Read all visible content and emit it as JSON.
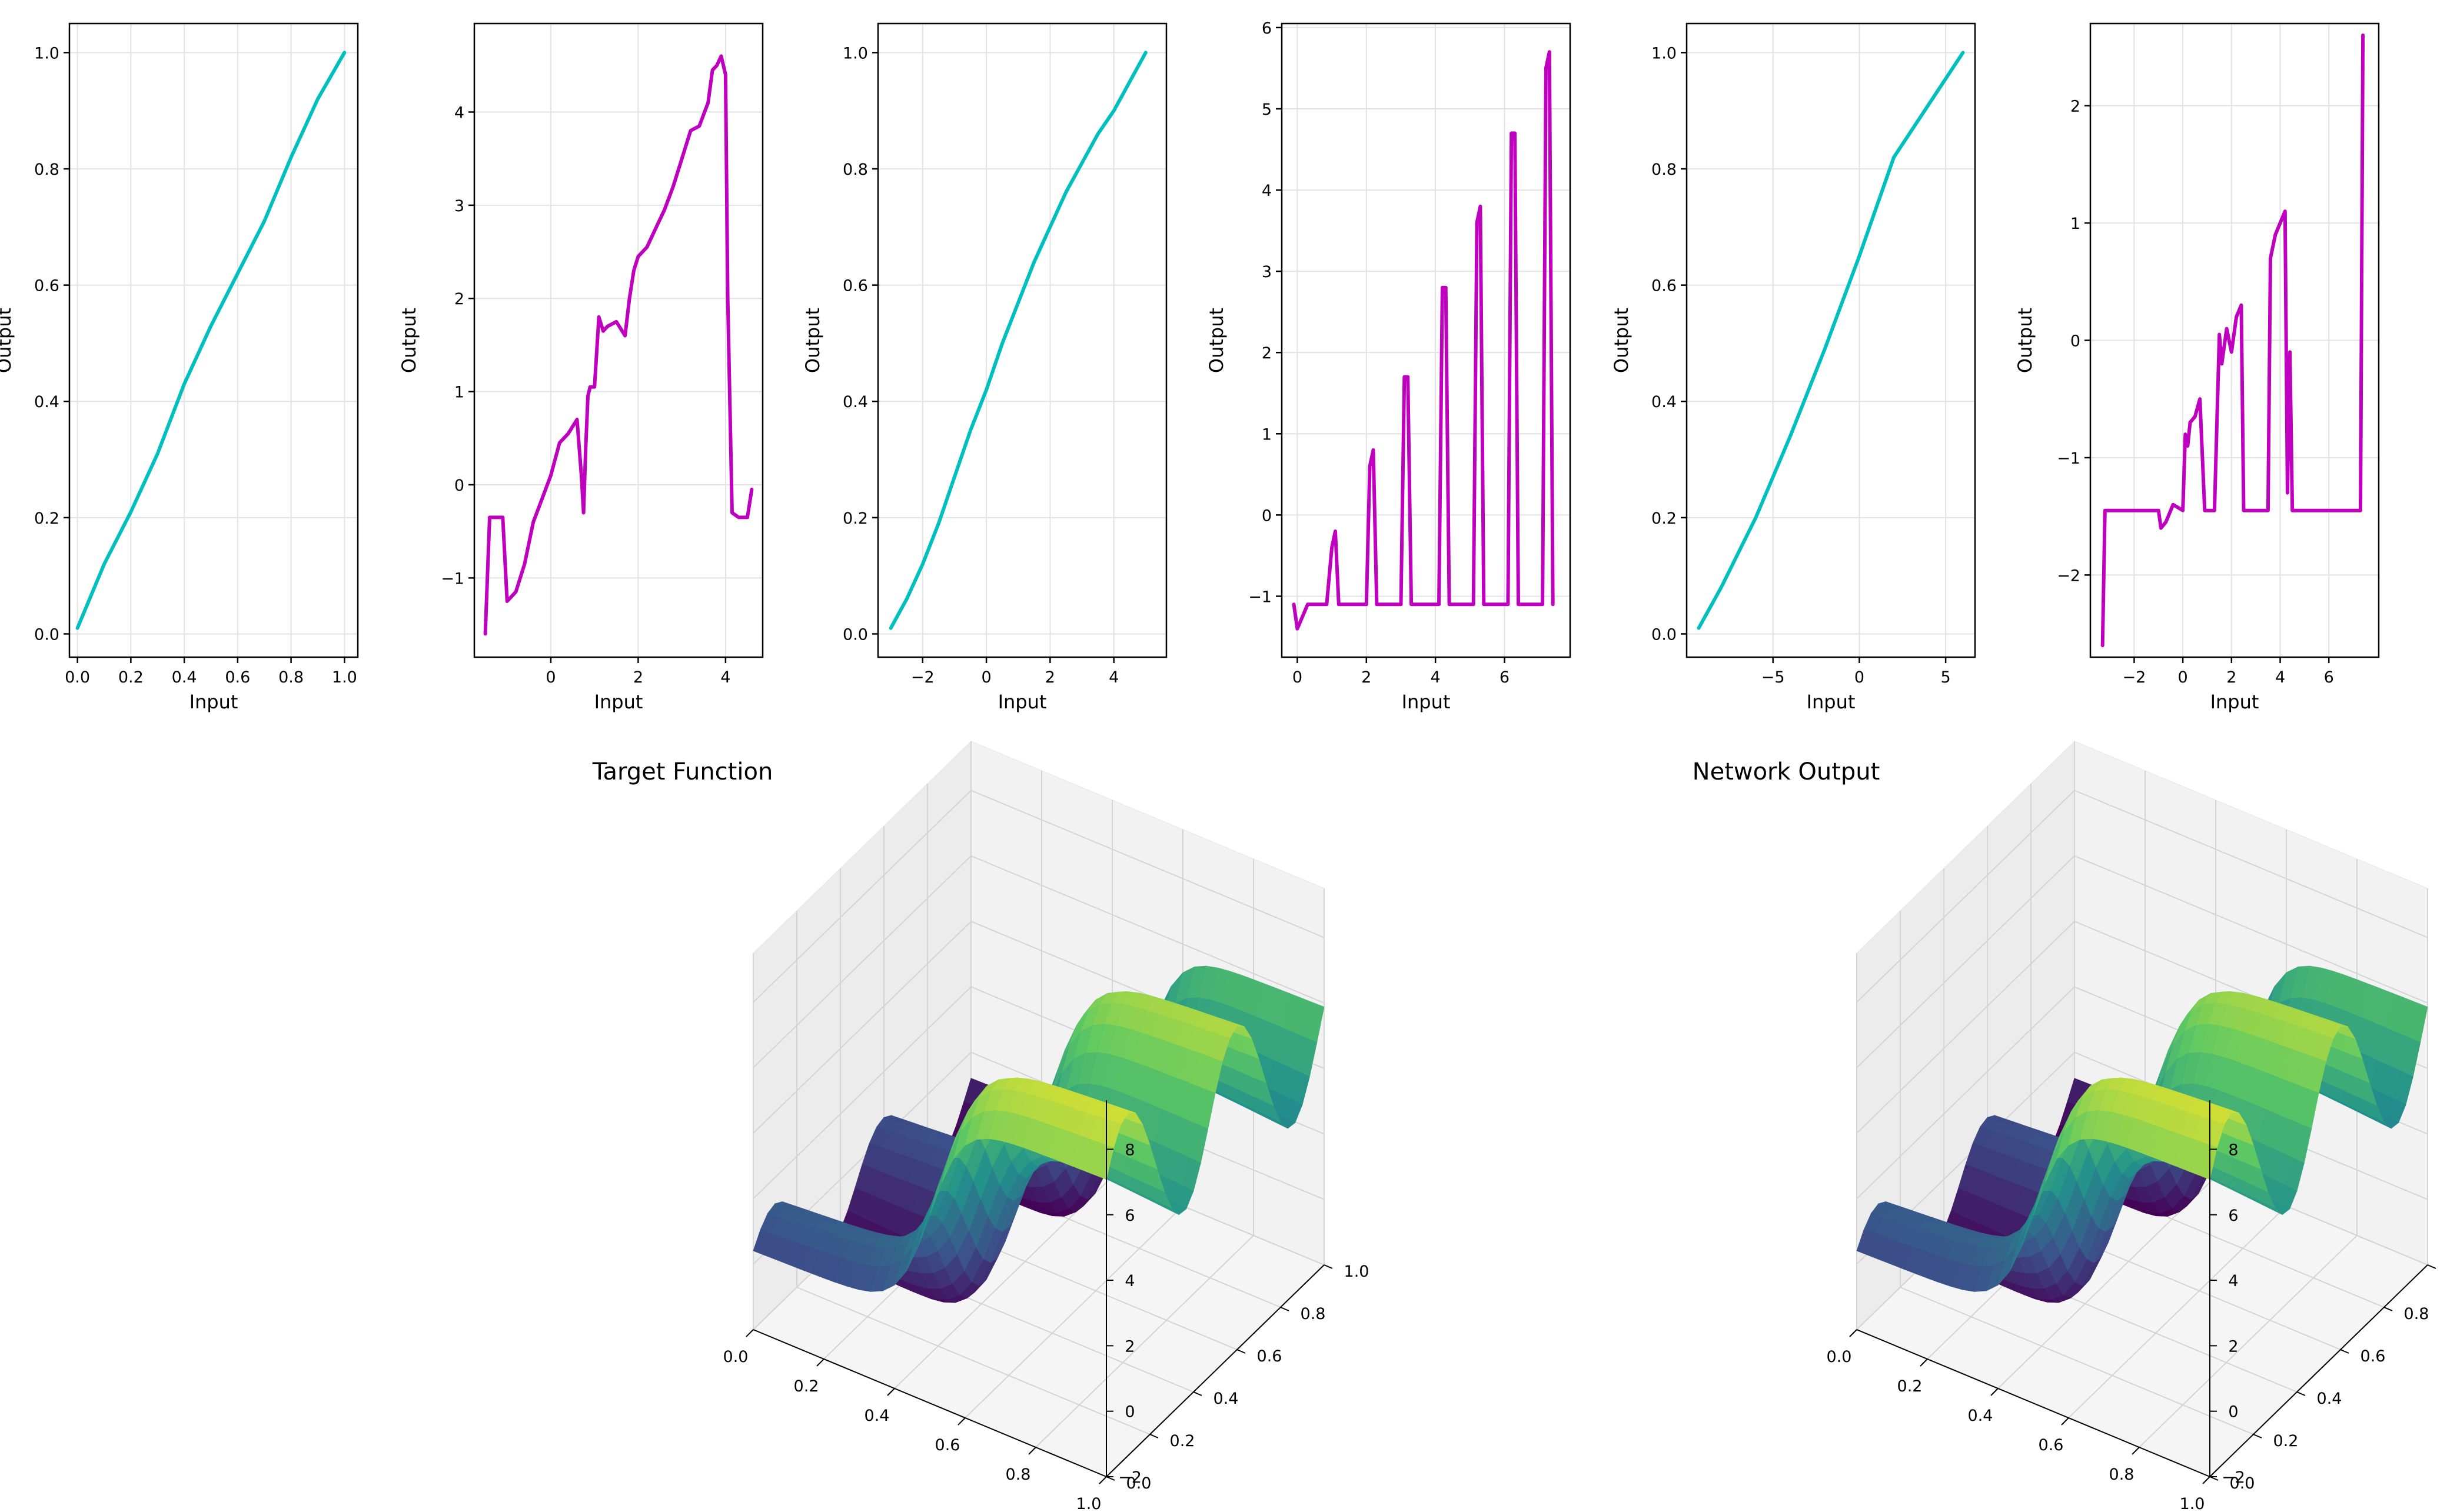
{
  "chart_data": [
    {
      "type": "line",
      "color": "#00bfbf",
      "xlabel": "Input",
      "ylabel": "Output",
      "xlim": [
        -0.03,
        1.05
      ],
      "ylim": [
        -0.04,
        1.05
      ],
      "xticks": [
        0.0,
        0.2,
        0.4,
        0.6,
        0.8,
        1.0
      ],
      "xtick_labels": [
        "0.0",
        "0.2",
        "0.4",
        "0.6",
        "0.8",
        "1.0"
      ],
      "yticks": [
        0.0,
        0.2,
        0.4,
        0.6,
        0.8,
        1.0
      ],
      "ytick_labels": [
        "0.0",
        "0.2",
        "0.4",
        "0.6",
        "0.8",
        "1.0"
      ],
      "grid": true,
      "x": [
        0.0,
        0.1,
        0.2,
        0.3,
        0.4,
        0.5,
        0.6,
        0.7,
        0.8,
        0.9,
        1.0
      ],
      "y": [
        0.01,
        0.12,
        0.21,
        0.31,
        0.43,
        0.53,
        0.62,
        0.71,
        0.82,
        0.92,
        1.0
      ]
    },
    {
      "type": "line",
      "color": "#bf00bf",
      "xlabel": "Input",
      "ylabel": "Output",
      "xlim": [
        -1.75,
        4.85
      ],
      "ylim": [
        -1.85,
        4.95
      ],
      "xticks": [
        0,
        2,
        4
      ],
      "xtick_labels": [
        "0",
        "2",
        "4"
      ],
      "yticks": [
        -1,
        0,
        1,
        2,
        3,
        4
      ],
      "ytick_labels": [
        "−1",
        "0",
        "1",
        "2",
        "3",
        "4"
      ],
      "grid": true,
      "x": [
        -1.5,
        -1.4,
        -1.1,
        -1.0,
        -0.8,
        -0.6,
        -0.4,
        -0.2,
        0.0,
        0.2,
        0.4,
        0.6,
        0.7,
        0.75,
        0.8,
        0.85,
        0.9,
        1.0,
        1.1,
        1.2,
        1.3,
        1.5,
        1.7,
        1.8,
        1.9,
        2.0,
        2.2,
        2.4,
        2.6,
        2.8,
        3.0,
        3.2,
        3.4,
        3.6,
        3.7,
        3.8,
        3.9,
        4.0,
        4.05,
        4.15,
        4.3,
        4.5,
        4.6
      ],
      "y": [
        -1.6,
        -0.35,
        -0.35,
        -1.25,
        -1.15,
        -0.85,
        -0.4,
        -0.15,
        0.1,
        0.45,
        0.55,
        0.7,
        0.1,
        -0.3,
        0.4,
        0.95,
        1.05,
        1.05,
        1.8,
        1.65,
        1.7,
        1.75,
        1.6,
        2.0,
        2.3,
        2.45,
        2.55,
        2.75,
        2.95,
        3.2,
        3.5,
        3.8,
        3.85,
        4.1,
        4.45,
        4.5,
        4.6,
        4.4,
        2.0,
        -0.3,
        -0.35,
        -0.35,
        -0.05
      ]
    },
    {
      "type": "line",
      "color": "#00bfbf",
      "xlabel": "Input",
      "ylabel": "Output",
      "xlim": [
        -3.4,
        5.65
      ],
      "ylim": [
        -0.04,
        1.05
      ],
      "xticks": [
        -2,
        0,
        2,
        4
      ],
      "xtick_labels": [
        "−2",
        "0",
        "2",
        "4"
      ],
      "yticks": [
        0.0,
        0.2,
        0.4,
        0.6,
        0.8,
        1.0
      ],
      "ytick_labels": [
        "0.0",
        "0.2",
        "0.4",
        "0.6",
        "0.8",
        "1.0"
      ],
      "grid": true,
      "x": [
        -3.0,
        -2.5,
        -2.0,
        -1.5,
        -1.0,
        -0.5,
        0.0,
        0.5,
        1.0,
        1.5,
        2.0,
        2.5,
        3.0,
        3.5,
        4.0,
        4.5,
        5.0
      ],
      "y": [
        0.01,
        0.06,
        0.12,
        0.19,
        0.27,
        0.35,
        0.42,
        0.5,
        0.57,
        0.64,
        0.7,
        0.76,
        0.81,
        0.86,
        0.9,
        0.95,
        1.0
      ]
    },
    {
      "type": "line",
      "color": "#bf00bf",
      "xlabel": "Input",
      "ylabel": "Output",
      "xlim": [
        -0.45,
        7.9
      ],
      "ylim": [
        -1.75,
        6.05
      ],
      "xticks": [
        0,
        2,
        4,
        6
      ],
      "xtick_labels": [
        "0",
        "2",
        "4",
        "6"
      ],
      "yticks": [
        -1,
        0,
        1,
        2,
        3,
        4,
        5,
        6
      ],
      "ytick_labels": [
        "−1",
        "0",
        "1",
        "2",
        "3",
        "4",
        "5",
        "6"
      ],
      "grid": true,
      "x": [
        -0.1,
        0.0,
        0.1,
        0.3,
        0.6,
        0.85,
        1.0,
        1.1,
        1.2,
        2.0,
        2.1,
        2.2,
        2.3,
        3.0,
        3.1,
        3.2,
        3.3,
        4.1,
        4.2,
        4.3,
        4.4,
        5.1,
        5.2,
        5.3,
        5.4,
        6.1,
        6.2,
        6.3,
        6.4,
        7.1,
        7.2,
        7.3,
        7.4
      ],
      "y": [
        -1.1,
        -1.4,
        -1.3,
        -1.1,
        -1.1,
        -1.1,
        -0.4,
        -0.2,
        -1.1,
        -1.1,
        0.6,
        0.8,
        -1.1,
        -1.1,
        1.7,
        1.7,
        -1.1,
        -1.1,
        2.8,
        2.8,
        -1.1,
        -1.1,
        3.6,
        3.8,
        -1.1,
        -1.1,
        4.7,
        4.7,
        -1.1,
        -1.1,
        5.5,
        5.7,
        -1.1
      ]
    },
    {
      "type": "line",
      "color": "#00bfbf",
      "xlabel": "Input",
      "ylabel": "Output",
      "xlim": [
        -10.0,
        6.7
      ],
      "ylim": [
        -0.04,
        1.05
      ],
      "xticks": [
        -5,
        0,
        5
      ],
      "xtick_labels": [
        "−5",
        "0",
        "5"
      ],
      "yticks": [
        0.0,
        0.2,
        0.4,
        0.6,
        0.8,
        1.0
      ],
      "ytick_labels": [
        "0.0",
        "0.2",
        "0.4",
        "0.6",
        "0.8",
        "1.0"
      ],
      "grid": true,
      "x": [
        -9.3,
        -8.0,
        -6.0,
        -4.0,
        -2.0,
        0.0,
        2.0,
        4.0,
        6.0
      ],
      "y": [
        0.01,
        0.08,
        0.2,
        0.34,
        0.49,
        0.65,
        0.82,
        0.91,
        1.0
      ]
    },
    {
      "type": "line",
      "color": "#bf00bf",
      "xlabel": "Input",
      "ylabel": "Output",
      "xlim": [
        -3.8,
        8.05
      ],
      "ylim": [
        -2.7,
        2.7
      ],
      "xticks": [
        -2,
        0,
        2,
        4,
        6
      ],
      "xtick_labels": [
        "−2",
        "0",
        "2",
        "4",
        "6"
      ],
      "yticks": [
        -2,
        -1,
        0,
        1,
        2
      ],
      "ytick_labels": [
        "−2",
        "−1",
        "0",
        "1",
        "2"
      ],
      "grid": true,
      "x": [
        -3.3,
        -3.2,
        -1.0,
        -0.9,
        -0.7,
        -0.4,
        0.0,
        0.1,
        0.2,
        0.3,
        0.5,
        0.7,
        0.9,
        1.0,
        1.3,
        1.5,
        1.6,
        1.8,
        2.0,
        2.2,
        2.4,
        2.5,
        2.6,
        3.5,
        3.6,
        3.8,
        4.0,
        4.2,
        4.3,
        4.4,
        4.5,
        4.6,
        7.3,
        7.4
      ],
      "y": [
        -2.6,
        -1.45,
        -1.45,
        -1.6,
        -1.55,
        -1.4,
        -1.45,
        -0.8,
        -0.9,
        -0.7,
        -0.65,
        -0.5,
        -1.45,
        -1.45,
        -1.45,
        0.05,
        -0.2,
        0.1,
        -0.1,
        0.2,
        0.3,
        -1.45,
        -1.45,
        -1.45,
        0.7,
        0.9,
        1.0,
        1.1,
        -1.3,
        -0.1,
        -1.45,
        -1.45,
        -1.45,
        2.6
      ]
    },
    {
      "type": "surface",
      "title": "Target Function",
      "x_ticks": [
        "0.0",
        "0.2",
        "0.4",
        "0.6",
        "0.8",
        "1.0"
      ],
      "y_ticks": [
        "0.0",
        "0.2",
        "0.4",
        "0.6",
        "0.8",
        "1.0"
      ],
      "z_ticks": [
        "−2",
        "0",
        "2",
        "4",
        "6",
        "8"
      ],
      "zlim": [
        -2,
        9.5
      ],
      "colormap": "viridis"
    },
    {
      "type": "surface",
      "title": "Network Output",
      "x_ticks": [
        "0.0",
        "0.2",
        "0.4",
        "0.6",
        "0.8",
        "1.0"
      ],
      "y_ticks": [
        "0.0",
        "0.2",
        "0.4",
        "0.6",
        "0.8",
        "1.0"
      ],
      "z_ticks": [
        "−2",
        "0",
        "2",
        "4",
        "6",
        "8"
      ],
      "zlim": [
        -2,
        9.5
      ],
      "colormap": "viridis"
    }
  ]
}
